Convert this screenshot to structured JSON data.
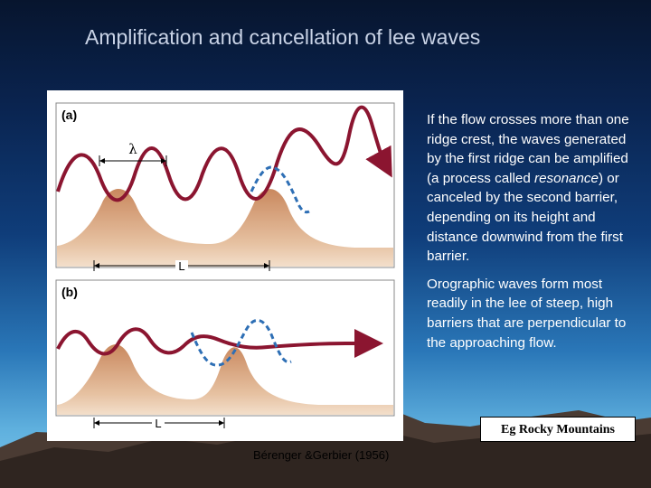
{
  "slide": {
    "title": "Amplification and cancellation of lee waves",
    "citation": "Bérenger &Gerbier (1956)",
    "example": "Eg Rocky Mountains"
  },
  "figure": {
    "panel_a": {
      "label": "(a)",
      "wavelength_label": "λ",
      "distance_label": "L"
    },
    "panel_b": {
      "label": "(b)",
      "distance_label": "L"
    }
  },
  "text": {
    "paragraph1_before": "If the flow crosses more than one ridge crest, the waves generated by the first ridge can be amplified (a process called ",
    "paragraph1_italic": "resonance",
    "paragraph1_after": ") or canceled by the second barrier, depending on its height and distance downwind from the first barrier.",
    "paragraph2": "Orographic waves form most readily in the lee of steep, high barriers that are perpendicular to the approaching flow."
  },
  "colors": {
    "wave_flow": "#8b1530",
    "second_ridge_wave": "#2e6fb5",
    "terrain_peak": "#cd9168",
    "terrain_base": "#f2ddc8"
  }
}
